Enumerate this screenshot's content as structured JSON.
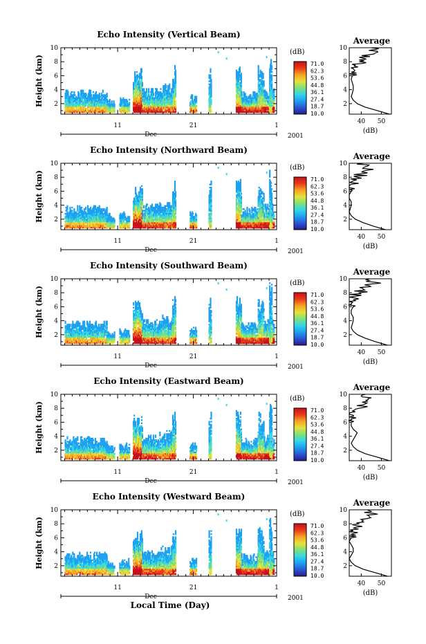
{
  "colorbar": {
    "unit": "(dB)",
    "levels": [
      "71.0",
      "62.3",
      "53.6",
      "44.8",
      "36.1",
      "27.4",
      "18.7",
      "10.0"
    ]
  },
  "colors": {
    "scale": [
      "#2b1a8a",
      "#2b57d6",
      "#1ea0f0",
      "#33d6e8",
      "#7ee27a",
      "#e6e23a",
      "#f7a325",
      "#e83a1a",
      "#c8101a"
    ]
  },
  "shared": {
    "ylabel": "Height (km)",
    "yticks": [
      "2",
      "4",
      "6",
      "8",
      "10"
    ],
    "xticks": [
      "11",
      "21",
      "1"
    ],
    "month_label": "Dec",
    "year_label": "2001",
    "avg_title": "Average",
    "avg_xlabel": "(dB)",
    "avg_xticks": [
      "40",
      "50"
    ]
  },
  "xlabel_bottom": "Local Time (Day)",
  "chart_data": [
    {
      "type": "heatmap",
      "title": "Echo Intensity (Vertical Beam)",
      "ylabel": "Height (km)",
      "ylim": [
        0.5,
        10
      ],
      "colorbar_range": [
        10.0,
        71.0
      ],
      "average_profile": {
        "height_km": [
          0.5,
          1,
          1.5,
          2,
          2.5,
          3,
          3.5,
          4,
          4.5,
          5,
          5.5,
          6,
          6.5,
          7,
          7.5,
          8,
          8.5,
          9,
          9.5,
          10
        ],
        "db": [
          54,
          48,
          42,
          38,
          36,
          35,
          35.5,
          36,
          36,
          35.5,
          35,
          35.5,
          35,
          36,
          37,
          39,
          41,
          44,
          48,
          45
        ]
      }
    },
    {
      "type": "heatmap",
      "title": "Echo Intensity (Northward Beam)",
      "ylabel": "Height (km)",
      "ylim": [
        0.5,
        10
      ],
      "colorbar_range": [
        10.0,
        71.0
      ],
      "average_profile": {
        "height_km": [
          0.5,
          1,
          1.5,
          2,
          2.5,
          3,
          3.5,
          4,
          4.5,
          5,
          5.5,
          6,
          6.5,
          7,
          7.5,
          8,
          8.5,
          9,
          9.5,
          10
        ],
        "db": [
          52,
          46,
          41,
          37,
          35,
          34,
          34.5,
          35,
          35,
          34,
          34,
          35,
          34,
          35,
          36,
          38,
          40,
          43,
          42,
          41
        ]
      }
    },
    {
      "type": "heatmap",
      "title": "Echo Intensity (Southward Beam)",
      "ylabel": "Height (km)",
      "ylim": [
        0.5,
        10
      ],
      "colorbar_range": [
        10.0,
        71.0
      ],
      "average_profile": {
        "height_km": [
          0.5,
          1,
          1.5,
          2,
          2.5,
          3,
          3.5,
          4,
          4.5,
          5,
          5.5,
          6,
          6.5,
          7,
          7.5,
          8,
          8.5,
          9,
          9.5,
          10
        ],
        "db": [
          53,
          47,
          42,
          38,
          36,
          35,
          35.5,
          36,
          36,
          35,
          35,
          36,
          35,
          36,
          37,
          39,
          41,
          44,
          47,
          44
        ]
      }
    },
    {
      "type": "heatmap",
      "title": "Echo Intensity (Eastward Beam)",
      "ylabel": "Height (km)",
      "ylim": [
        0.5,
        10
      ],
      "colorbar_range": [
        10.0,
        71.0
      ],
      "average_profile": {
        "height_km": [
          0.5,
          1,
          1.5,
          2,
          2.5,
          3,
          3.5,
          4,
          4.5,
          5,
          5.5,
          6,
          6.5,
          7,
          7.5,
          8,
          8.5,
          9,
          9.5,
          10
        ],
        "db": [
          54,
          48,
          42,
          38,
          36,
          35,
          36,
          37,
          38,
          36,
          35,
          35,
          35,
          36,
          37,
          39,
          41,
          43,
          45,
          42
        ]
      }
    },
    {
      "type": "heatmap",
      "title": "Echo Intensity (Westward Beam)",
      "ylabel": "Height (km)",
      "ylim": [
        0.5,
        10
      ],
      "colorbar_range": [
        10.0,
        71.0
      ],
      "average_profile": {
        "height_km": [
          0.5,
          1,
          1.5,
          2,
          2.5,
          3,
          3.5,
          4,
          4.5,
          5,
          5.5,
          6,
          6.5,
          7,
          7.5,
          8,
          8.5,
          9,
          9.5,
          10
        ],
        "db": [
          53,
          47,
          41,
          37,
          35,
          34,
          35,
          36,
          36,
          35,
          34,
          35,
          35,
          36,
          37,
          39,
          41,
          44,
          46,
          43
        ]
      }
    }
  ]
}
